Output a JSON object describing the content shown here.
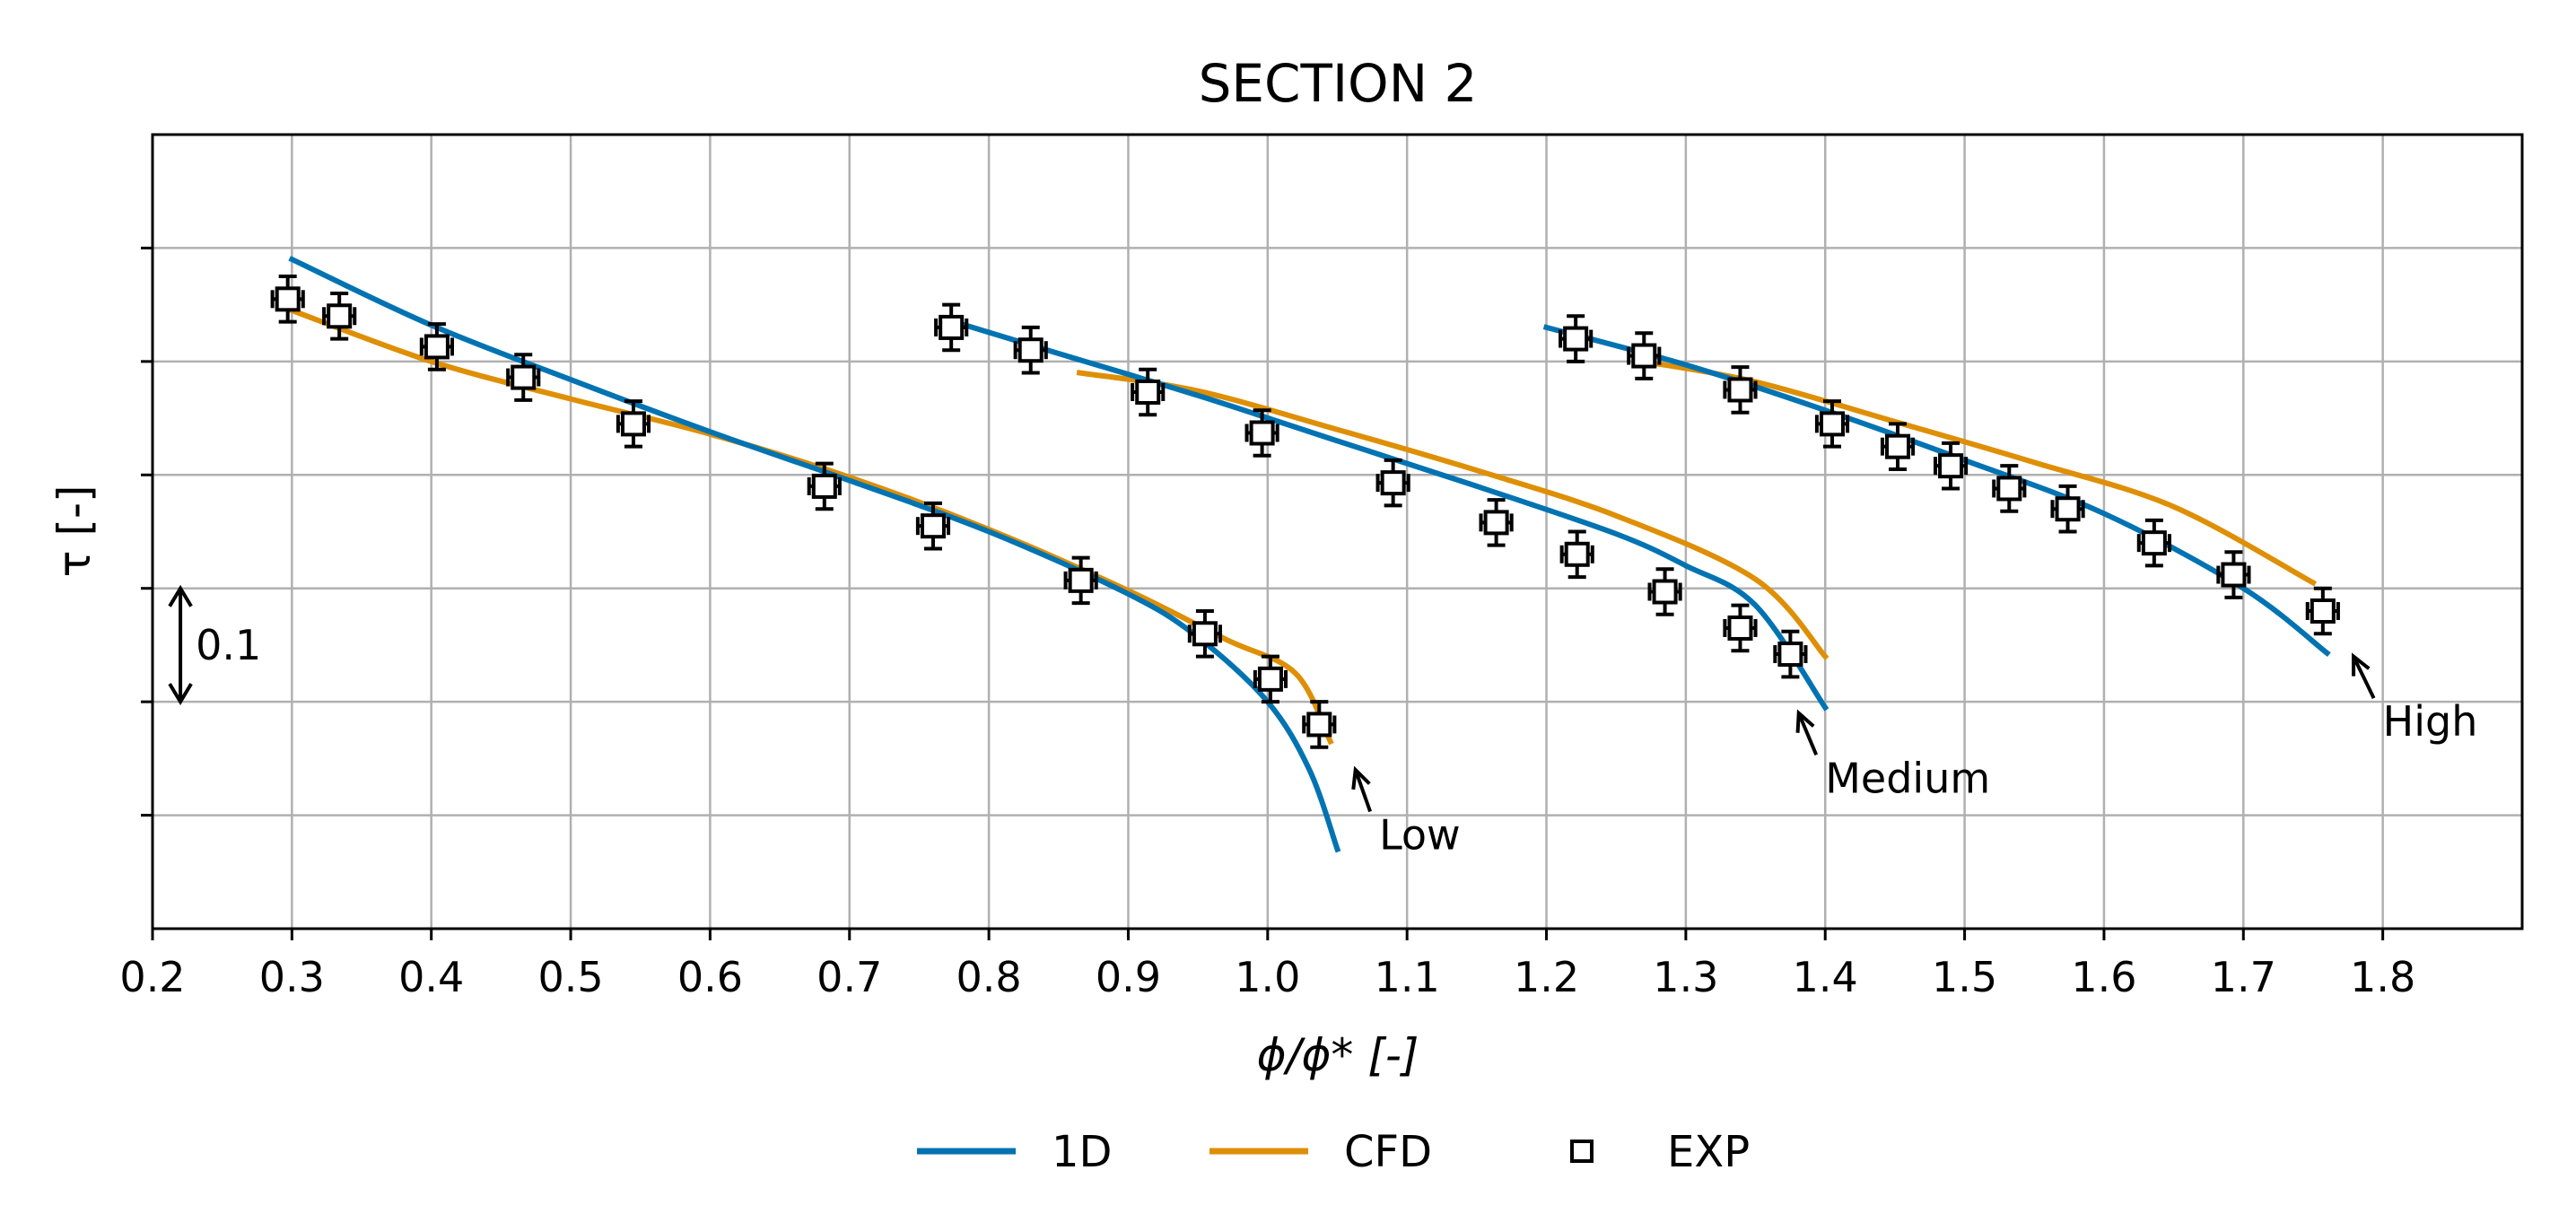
{
  "chart_data": {
    "type": "line",
    "title": "SECTION 2",
    "xlabel": "ϕ/ϕ* [-]",
    "ylabel": "τ [-]",
    "xlim": [
      0.2,
      1.9
    ],
    "ylim": [
      -0.3,
      0.4
    ],
    "xticks": [
      0.2,
      0.3,
      0.4,
      0.5,
      0.6,
      0.7,
      0.8,
      0.9,
      1.0,
      1.1,
      1.2,
      1.3,
      1.4,
      1.5,
      1.6,
      1.7,
      1.8
    ],
    "xtick_labels": [
      "0.2",
      "0.3",
      "0.4",
      "0.5",
      "0.6",
      "0.7",
      "0.8",
      "0.9",
      "1.0",
      "1.1",
      "1.2",
      "1.3",
      "1.4",
      "1.5",
      "1.6",
      "1.7",
      "1.8"
    ],
    "yticks": [
      -0.2,
      -0.1,
      0.0,
      0.1,
      0.2,
      0.3
    ],
    "ytick_labels": [
      "",
      "",
      "",
      "",
      "",
      ""
    ],
    "grid": true,
    "scale_bar": {
      "label": "0.1",
      "x": 0.22,
      "y_from": -0.1,
      "y_to": 0.0
    },
    "legend_position": "bottom-center",
    "series": [
      {
        "name": "1D",
        "color": "#0173b2",
        "kind": "line",
        "segments": [
          {
            "x": [
              0.3,
              0.4,
              0.5,
              0.6,
              0.7,
              0.8,
              0.9,
              0.95,
              1.0,
              1.03,
              1.05
            ],
            "y": [
              0.29,
              0.232,
              0.184,
              0.138,
              0.095,
              0.05,
              -0.005,
              -0.043,
              -0.1,
              -0.16,
              -0.23
            ]
          },
          {
            "x": [
              0.775,
              0.85,
              0.95,
              1.05,
              1.15,
              1.25,
              1.3,
              1.35,
              1.4
            ],
            "y": [
              0.235,
              0.207,
              0.17,
              0.13,
              0.09,
              0.048,
              0.02,
              -0.015,
              -0.105
            ]
          },
          {
            "x": [
              1.2,
              1.3,
              1.4,
              1.5,
              1.6,
              1.7,
              1.76
            ],
            "y": [
              0.23,
              0.197,
              0.157,
              0.113,
              0.066,
              0.0,
              -0.057
            ]
          }
        ]
      },
      {
        "name": "CFD",
        "color": "#de8f05",
        "kind": "line",
        "segments": [
          {
            "x": [
              0.3,
              0.4,
              0.5,
              0.6,
              0.7,
              0.8,
              0.9,
              0.97,
              1.02,
              1.045
            ],
            "y": [
              0.245,
              0.2,
              0.167,
              0.136,
              0.098,
              0.052,
              -0.002,
              -0.045,
              -0.075,
              -0.135
            ]
          },
          {
            "x": [
              0.865,
              0.95,
              1.05,
              1.15,
              1.25,
              1.35,
              1.4
            ],
            "y": [
              0.19,
              0.174,
              0.14,
              0.104,
              0.064,
              0.008,
              -0.06
            ]
          },
          {
            "x": [
              1.27,
              1.35,
              1.45,
              1.55,
              1.65,
              1.75
            ],
            "y": [
              0.2,
              0.182,
              0.147,
              0.111,
              0.072,
              0.005
            ]
          }
        ]
      },
      {
        "name": "EXP",
        "color": "#000000",
        "kind": "scatter",
        "marker": "square",
        "x": [
          0.297,
          0.334,
          0.404,
          0.466,
          0.545,
          0.682,
          0.76,
          0.866,
          0.955,
          1.002,
          1.037,
          0.773,
          0.83,
          0.914,
          0.996,
          1.09,
          1.164,
          1.222,
          1.285,
          1.339,
          1.375,
          1.221,
          1.27,
          1.339,
          1.405,
          1.452,
          1.49,
          1.532,
          1.574,
          1.636,
          1.693,
          1.757
        ],
        "y": [
          0.255,
          0.24,
          0.213,
          0.186,
          0.145,
          0.09,
          0.055,
          0.007,
          -0.04,
          -0.08,
          -0.12,
          0.23,
          0.21,
          0.173,
          0.137,
          0.093,
          0.058,
          0.03,
          -0.003,
          -0.035,
          -0.058,
          0.22,
          0.205,
          0.175,
          0.145,
          0.125,
          0.108,
          0.088,
          0.07,
          0.04,
          0.012,
          -0.02
        ],
        "xerr": 0.011,
        "yerr": 0.02
      }
    ],
    "annotations": [
      {
        "text": "Low",
        "arrow_tip_x": 1.063,
        "arrow_tip_y": -0.16,
        "text_x": 1.08,
        "text_y": -0.23
      },
      {
        "text": "Medium",
        "arrow_tip_x": 1.381,
        "arrow_tip_y": -0.11,
        "text_x": 1.4,
        "text_y": -0.18
      },
      {
        "text": "High",
        "arrow_tip_x": 1.779,
        "arrow_tip_y": -0.06,
        "text_x": 1.8,
        "text_y": -0.13
      }
    ]
  }
}
